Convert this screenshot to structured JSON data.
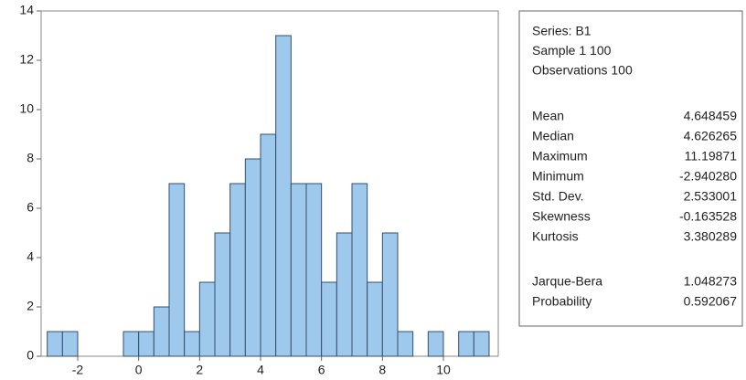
{
  "chart_data": {
    "type": "histogram",
    "bins": [
      -3,
      -2.5,
      -2,
      -1.5,
      -1,
      -0.5,
      0,
      0.5,
      1,
      1.5,
      2,
      2.5,
      3,
      3.5,
      4,
      4.5,
      5,
      5.5,
      6,
      6.5,
      7,
      7.5,
      8,
      8.5,
      9,
      9.5,
      10,
      10.5,
      11,
      11.5
    ],
    "values": [
      1,
      1,
      0,
      0,
      0,
      1,
      1,
      2,
      7,
      1,
      3,
      5,
      7,
      8,
      9,
      13,
      7,
      7,
      3,
      5,
      7,
      3,
      5,
      1,
      0,
      1,
      0,
      1,
      1
    ],
    "color": "#9fc9ec",
    "xlim": [
      -3.2,
      11.8
    ],
    "xticks": [
      -2,
      0,
      2,
      4,
      6,
      8,
      10
    ],
    "ylim": [
      0,
      14
    ],
    "yticks": [
      0,
      2,
      4,
      6,
      8,
      10,
      12,
      14
    ]
  },
  "stats_box": {
    "header": [
      "Series: B1",
      "Sample 1 100",
      "Observations 100"
    ],
    "rows": [
      [
        "Mean",
        "4.648459"
      ],
      [
        "Median",
        "4.626265"
      ],
      [
        "Maximum",
        "11.19871"
      ],
      [
        "Minimum",
        "-2.940280"
      ],
      [
        "Std. Dev.",
        "2.533001"
      ],
      [
        "Skewness",
        "-0.163528"
      ],
      [
        "Kurtosis",
        "3.380289"
      ]
    ],
    "test_rows": [
      [
        "Jarque-Bera",
        "1.048273"
      ],
      [
        "Probability",
        "0.592067"
      ]
    ]
  }
}
